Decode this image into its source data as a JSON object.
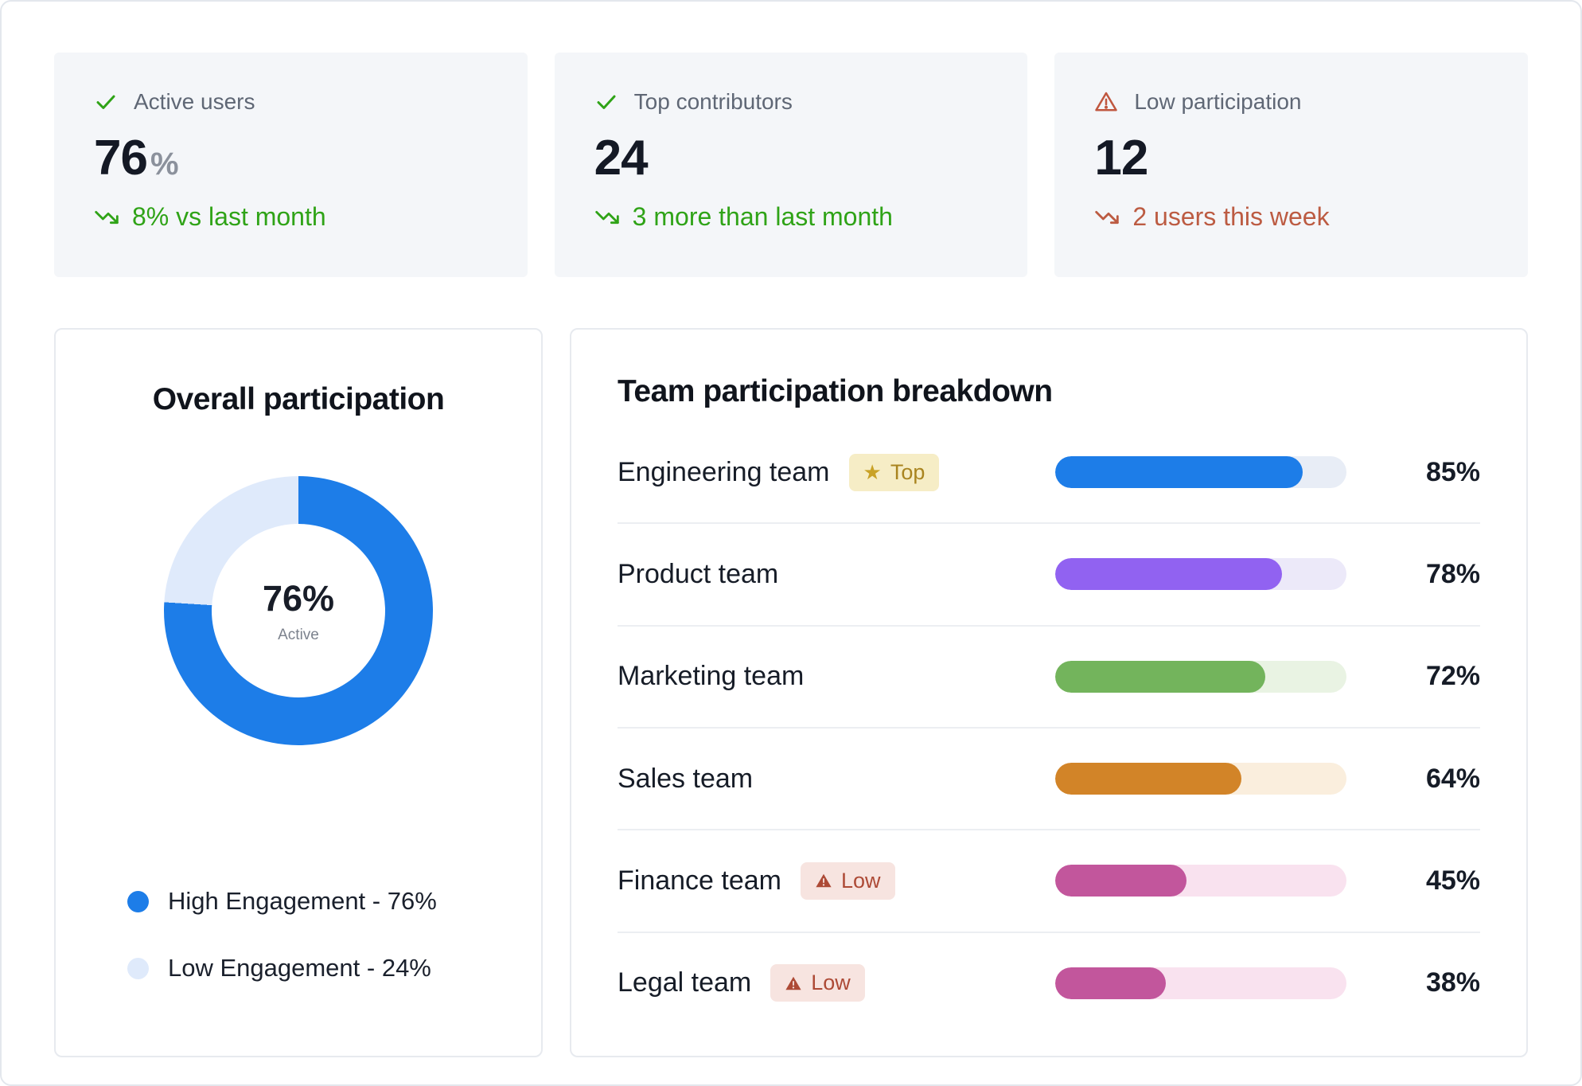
{
  "stats": [
    {
      "label": "Active users",
      "icon": "check",
      "value": "76",
      "suffix": "%",
      "trend": "8% vs last month",
      "trend_color": "#2fa317"
    },
    {
      "label": "Top contributors",
      "icon": "check",
      "value": "24",
      "suffix": "",
      "trend": "3 more than last month",
      "trend_color": "#2fa317"
    },
    {
      "label": "Low participation",
      "icon": "warning",
      "value": "12",
      "suffix": "",
      "trend": "2 users this week",
      "trend_color": "#bc5b42"
    }
  ],
  "donut": {
    "title": "Overall participation",
    "percent": 76,
    "center_label": "76%",
    "center_sub": "Active",
    "colors": {
      "high": "#1d7de8",
      "low": "#dfeafb"
    },
    "legend": [
      {
        "label": "High Engagement - 76%",
        "color": "#1d7de8"
      },
      {
        "label": "Low Engagement - 24%",
        "color": "#dfeafb"
      }
    ]
  },
  "teams": {
    "title": "Team participation breakdown",
    "rows": [
      {
        "name": "Engineering team",
        "badge": "Top",
        "value": 85,
        "percent_label": "85%",
        "color": "#1d7de8",
        "track_color": "#e8edf6"
      },
      {
        "name": "Product team",
        "badge": "",
        "value": 78,
        "percent_label": "78%",
        "color": "#9162f1",
        "track_color": "#ece9f9"
      },
      {
        "name": "Marketing team",
        "badge": "",
        "value": 72,
        "percent_label": "72%",
        "color": "#73b45c",
        "track_color": "#e9f3e3"
      },
      {
        "name": "Sales team",
        "badge": "",
        "value": 64,
        "percent_label": "64%",
        "color": "#d28428",
        "track_color": "#faeedd"
      },
      {
        "name": "Finance team",
        "badge": "Low",
        "value": 45,
        "percent_label": "45%",
        "color": "#c2569c",
        "track_color": "#f9e2ef"
      },
      {
        "name": "Legal team",
        "badge": "Low",
        "value": 38,
        "percent_label": "38%",
        "color": "#c2569c",
        "track_color": "#f9e2ef"
      }
    ]
  },
  "chart_data": [
    {
      "type": "pie",
      "title": "Overall participation",
      "labels": [
        "High Engagement",
        "Low Engagement"
      ],
      "values": [
        76,
        24
      ],
      "colors": [
        "#1d7de8",
        "#dfeafb"
      ],
      "center_label": "76%",
      "center_sublabel": "Active",
      "legend_position": "bottom-left"
    },
    {
      "type": "bar",
      "title": "Team participation breakdown",
      "categories": [
        "Engineering team",
        "Product team",
        "Marketing team",
        "Sales team",
        "Finance team",
        "Legal team"
      ],
      "values": [
        85,
        78,
        72,
        64,
        45,
        38
      ],
      "unit": "%",
      "xlim": [
        0,
        100
      ],
      "orientation": "horizontal",
      "bar_colors": [
        "#1d7de8",
        "#9162f1",
        "#73b45c",
        "#d28428",
        "#c2569c",
        "#c2569c"
      ],
      "annotations": {
        "Engineering team": "Top",
        "Finance team": "Low",
        "Legal team": "Low"
      }
    },
    {
      "type": "table",
      "title": "KPI summary cards",
      "categories": [
        "Active users",
        "Top contributors",
        "Low participation"
      ],
      "values": [
        "76%",
        "24",
        "12"
      ],
      "deltas": [
        "8% vs last month",
        "3 more than last month",
        "2 users this week"
      ]
    }
  ]
}
